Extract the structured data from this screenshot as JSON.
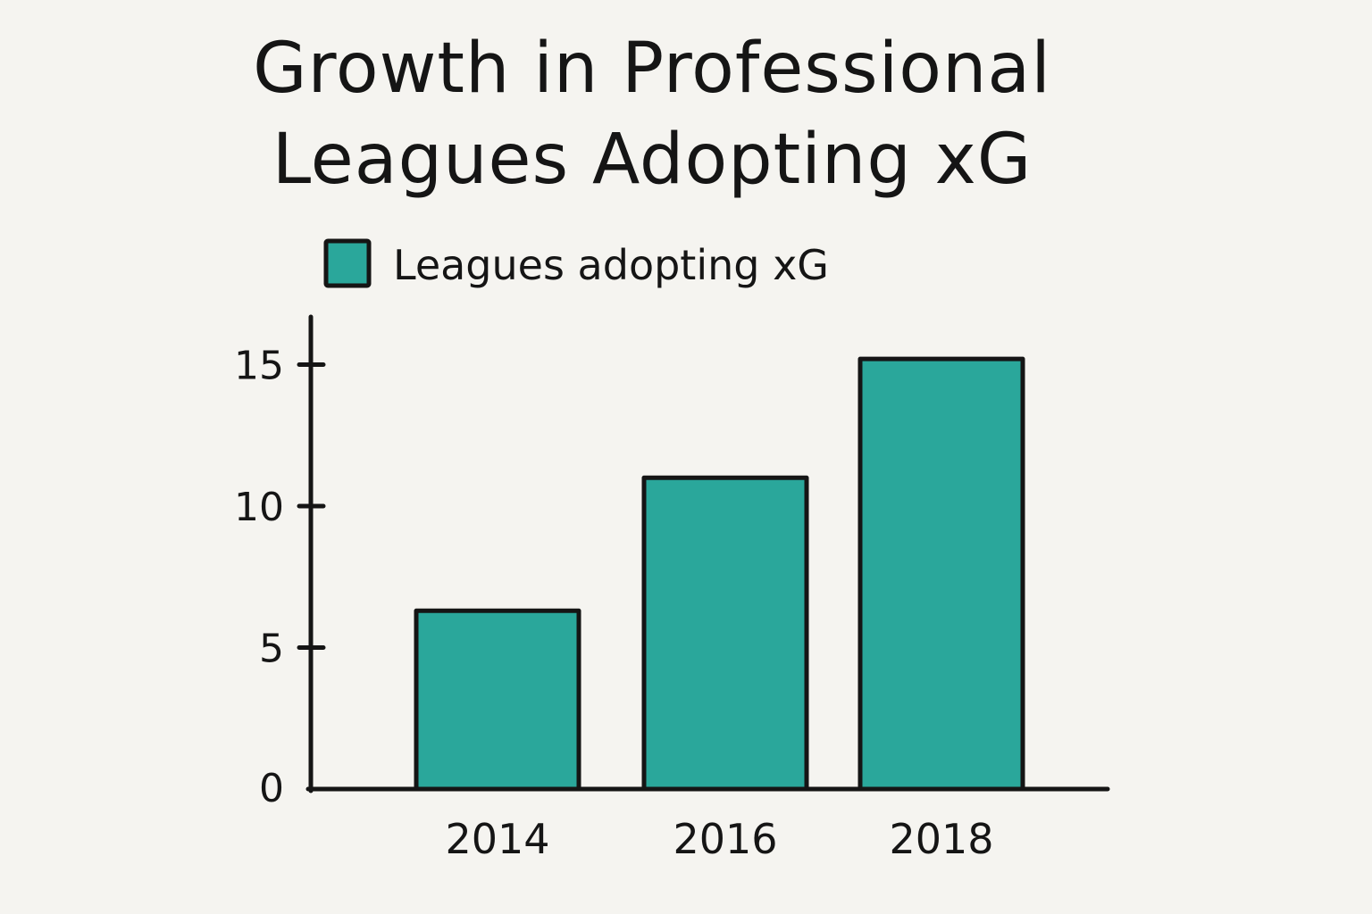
{
  "chart_data": {
    "type": "bar",
    "title_lines": [
      "Growth in Professional",
      "Leagues Adopting xG"
    ],
    "categories": [
      "2014",
      "2016",
      "2018"
    ],
    "series": [
      {
        "name": "Leagues adopting xG",
        "values": [
          6.3,
          11,
          15.2
        ]
      }
    ],
    "ylim": [
      0,
      16
    ],
    "yticks": [
      0,
      5,
      10,
      15
    ],
    "xlabel": "",
    "ylabel": "",
    "legend_position": "top-left",
    "grid": false
  },
  "colors": {
    "bar_fill": "#2aa79b",
    "outline": "#151515",
    "background": "#f5f4f0"
  }
}
